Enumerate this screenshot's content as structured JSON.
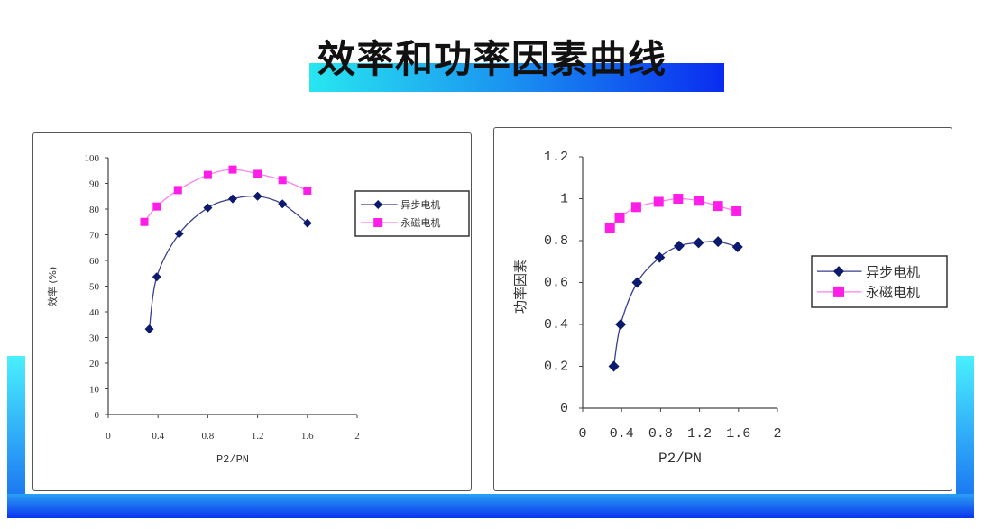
{
  "title": "效率和功率因素曲线",
  "colors": {
    "series1": "#0b1a6e",
    "series2": "#ff1ee8",
    "accent_bar": "#1a8ff0"
  },
  "chart_data": [
    {
      "type": "line",
      "title": "",
      "xlabel": "P2/PN",
      "ylabel": "效率 (%)",
      "xlim": [
        0,
        2
      ],
      "ylim": [
        0,
        100
      ],
      "xticks": [
        "0",
        "0.4",
        "0.8",
        "1.2",
        "1.6",
        "2"
      ],
      "xtick_values": [
        0,
        0.4,
        0.8,
        1.2,
        1.6,
        2
      ],
      "yticks": [
        "0",
        "10",
        "20",
        "30",
        "40",
        "50",
        "60",
        "70",
        "80",
        "90",
        "100"
      ],
      "ytick_values": [
        0,
        10,
        20,
        30,
        40,
        50,
        60,
        70,
        80,
        90,
        100
      ],
      "grid": false,
      "legend_placement": "right",
      "series": [
        {
          "name": "异步电机",
          "marker": "diamond",
          "color": "#0b1a6e",
          "x": [
            0.33,
            0.39,
            0.57,
            0.8,
            1.0,
            1.2,
            1.4,
            1.6
          ],
          "y": [
            33.3,
            53.6,
            70.4,
            80.5,
            84,
            85,
            82,
            74.5
          ]
        },
        {
          "name": "永磁电机",
          "marker": "square",
          "color": "#ff1ee8",
          "x": [
            0.29,
            0.39,
            0.56,
            0.8,
            1.0,
            1.2,
            1.4,
            1.6
          ],
          "y": [
            75,
            81,
            87.4,
            93.3,
            95.4,
            93.7,
            91.3,
            87.2
          ]
        }
      ]
    },
    {
      "type": "line",
      "title": "",
      "xlabel": "P2/PN",
      "ylabel": "功率因素",
      "xlim": [
        0,
        2
      ],
      "ylim": [
        0,
        1.2
      ],
      "xticks": [
        "0",
        "0.4",
        "0.8",
        "1.2",
        "1.6",
        "2"
      ],
      "xtick_values": [
        0,
        0.4,
        0.8,
        1.2,
        1.6,
        2
      ],
      "yticks": [
        "0",
        "0.2",
        "0.4",
        "0.6",
        "0.8",
        "1",
        "1.2"
      ],
      "ytick_values": [
        0,
        0.2,
        0.4,
        0.6,
        0.8,
        1,
        1.2
      ],
      "grid": false,
      "legend_placement": "right",
      "series": [
        {
          "name": "异步电机",
          "marker": "diamond",
          "color": "#0b1a6e",
          "x": [
            0.32,
            0.39,
            0.56,
            0.79,
            0.99,
            1.19,
            1.39,
            1.59
          ],
          "y": [
            0.2,
            0.4,
            0.6,
            0.72,
            0.775,
            0.79,
            0.795,
            0.77
          ]
        },
        {
          "name": "永磁电机",
          "marker": "square",
          "color": "#ff1ee8",
          "x": [
            0.28,
            0.38,
            0.55,
            0.78,
            0.98,
            1.19,
            1.39,
            1.58
          ],
          "y": [
            0.86,
            0.91,
            0.96,
            0.985,
            1.0,
            0.99,
            0.965,
            0.94
          ]
        }
      ]
    }
  ]
}
